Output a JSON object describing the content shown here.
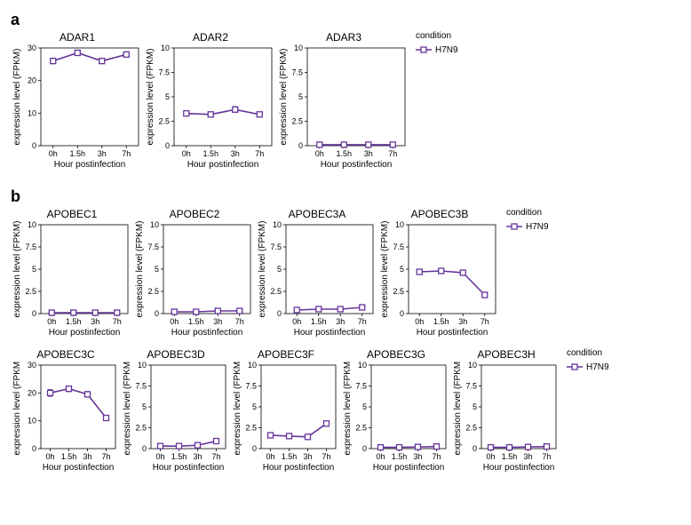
{
  "global": {
    "line_color": "#663399",
    "marker_fill": "#ffffff",
    "marker_stroke": "#663399",
    "background_color": "#ffffff",
    "panel_border_color": "#000000",
    "tick_color": "#000000",
    "line_width": 1.6,
    "marker_size": 3,
    "title_fontsize": 12,
    "axis_label_fontsize": 10,
    "tick_fontsize": 9,
    "x_label": "Hour postinfection",
    "y_label": "expression level (FPKM)",
    "x_ticks": [
      "0h",
      "1.5h",
      "3h",
      "7h"
    ],
    "legend_title": "condition",
    "legend_label": "H7N9"
  },
  "panels": {
    "a": {
      "label": "a",
      "legend_after": 2,
      "charts": [
        {
          "title": "ADAR1",
          "ylim": [
            0,
            30
          ],
          "ytick_step": 10,
          "values": [
            26,
            28.5,
            26,
            28
          ],
          "err": [
            0.8,
            0.8,
            0.6,
            0.8
          ]
        },
        {
          "title": "ADAR2",
          "ylim": [
            0,
            10
          ],
          "ytick_step": 2.5,
          "values": [
            3.3,
            3.2,
            3.7,
            3.2
          ],
          "err": [
            0.25,
            0.25,
            0.3,
            0.25
          ]
        },
        {
          "title": "ADAR3",
          "ylim": [
            0,
            10
          ],
          "ytick_step": 2.5,
          "values": [
            0.1,
            0.1,
            0.1,
            0.1
          ],
          "err": [
            0.05,
            0.05,
            0.05,
            0.05
          ]
        }
      ]
    },
    "b": {
      "label": "b",
      "rows": [
        {
          "legend_after": 3,
          "charts": [
            {
              "title": "APOBEC1",
              "ylim": [
                0,
                10
              ],
              "ytick_step": 2.5,
              "values": [
                0.1,
                0.1,
                0.1,
                0.1
              ],
              "err": [
                0.05,
                0.05,
                0.05,
                0.05
              ]
            },
            {
              "title": "APOBEC2",
              "ylim": [
                0,
                10
              ],
              "ytick_step": 2.5,
              "values": [
                0.2,
                0.2,
                0.3,
                0.3
              ],
              "err": [
                0.1,
                0.1,
                0.1,
                0.15
              ]
            },
            {
              "title": "APOBEC3A",
              "ylim": [
                0,
                10
              ],
              "ytick_step": 2.5,
              "values": [
                0.4,
                0.5,
                0.5,
                0.7
              ],
              "err": [
                0.15,
                0.15,
                0.15,
                0.2
              ]
            },
            {
              "title": "APOBEC3B",
              "ylim": [
                0,
                10
              ],
              "ytick_step": 2.5,
              "values": [
                4.7,
                4.8,
                4.6,
                2.1
              ],
              "err": [
                0.25,
                0.2,
                0.25,
                0.15
              ]
            }
          ]
        },
        {
          "legend_after": 4,
          "charts": [
            {
              "title": "APOBEC3C",
              "ylim": [
                0,
                30
              ],
              "ytick_step": 10,
              "values": [
                20,
                21.5,
                19.5,
                11
              ],
              "err": [
                1.2,
                1.0,
                1.0,
                0.8
              ]
            },
            {
              "title": "APOBEC3D",
              "ylim": [
                0,
                10
              ],
              "ytick_step": 2.5,
              "values": [
                0.3,
                0.3,
                0.4,
                0.9
              ],
              "err": [
                0.1,
                0.1,
                0.15,
                0.3
              ]
            },
            {
              "title": "APOBEC3F",
              "ylim": [
                0,
                10
              ],
              "ytick_step": 2.5,
              "values": [
                1.6,
                1.5,
                1.4,
                3.0
              ],
              "err": [
                0.15,
                0.15,
                0.15,
                0.25
              ]
            },
            {
              "title": "APOBEC3G",
              "ylim": [
                0,
                10
              ],
              "ytick_step": 2.5,
              "values": [
                0.15,
                0.15,
                0.2,
                0.25
              ],
              "err": [
                0.1,
                0.1,
                0.1,
                0.15
              ]
            },
            {
              "title": "APOBEC3H",
              "ylim": [
                0,
                10
              ],
              "ytick_step": 2.5,
              "values": [
                0.15,
                0.15,
                0.2,
                0.25
              ],
              "err": [
                0.1,
                0.1,
                0.1,
                0.15
              ]
            }
          ]
        }
      ]
    }
  }
}
